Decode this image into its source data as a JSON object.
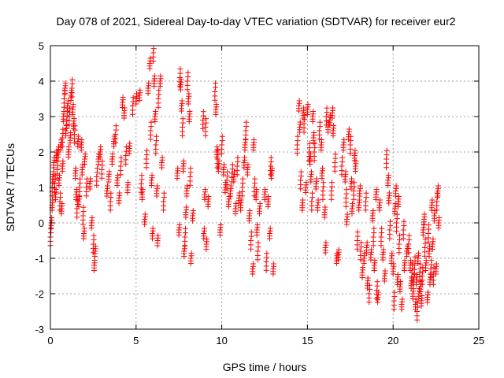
{
  "chart_data": {
    "type": "scatter",
    "title": "Day 078 of 2021, Sidereal Day-to-day VTEC variation (SDTVAR) for receiver eur2",
    "xlabel": "GPS time / hours",
    "ylabel": "SDTVAR / TECUs",
    "xlim": [
      0,
      25
    ],
    "ylim": [
      -3,
      5
    ],
    "xticks": [
      "0",
      "5",
      "10",
      "15",
      "20",
      "25"
    ],
    "yticks": [
      "-3",
      "-2",
      "-1",
      "0",
      "1",
      "2",
      "3",
      "4",
      "5"
    ],
    "grid": true,
    "marker": "plus",
    "marker_color": "#ff0000",
    "series": [
      {
        "name": "SDTVAR",
        "points": [
          [
            0.0,
            -0.4
          ],
          [
            0.05,
            0.0
          ],
          [
            0.1,
            0.5
          ],
          [
            0.1,
            1.0
          ],
          [
            0.15,
            1.3
          ],
          [
            0.2,
            1.7
          ],
          [
            0.25,
            1.1
          ],
          [
            0.3,
            0.8
          ],
          [
            0.35,
            1.9
          ],
          [
            0.4,
            1.5
          ],
          [
            0.45,
            2.0
          ],
          [
            0.5,
            1.2
          ],
          [
            0.55,
            0.6
          ],
          [
            0.6,
            2.2
          ],
          [
            0.65,
            0.4
          ],
          [
            0.7,
            2.4
          ],
          [
            0.7,
            1.6
          ],
          [
            0.75,
            3.0
          ],
          [
            0.8,
            3.5
          ],
          [
            0.85,
            3.8
          ],
          [
            0.9,
            2.6
          ],
          [
            0.95,
            2.9
          ],
          [
            1.0,
            3.3
          ],
          [
            1.05,
            2.0
          ],
          [
            1.1,
            3.0
          ],
          [
            1.15,
            2.4
          ],
          [
            1.2,
            3.6
          ],
          [
            1.25,
            3.8
          ],
          [
            1.3,
            3.2
          ],
          [
            1.35,
            2.8
          ],
          [
            1.4,
            2.5
          ],
          [
            1.45,
            1.4
          ],
          [
            1.5,
            0.8
          ],
          [
            1.55,
            0.4
          ],
          [
            1.6,
            2.3
          ],
          [
            1.65,
            0.6
          ],
          [
            1.7,
            1.0
          ],
          [
            1.8,
            2.2
          ],
          [
            1.85,
            1.5
          ],
          [
            1.9,
            0.2
          ],
          [
            1.95,
            -0.3
          ],
          [
            2.0,
            1.8
          ],
          [
            2.1,
            1.0
          ],
          [
            2.3,
            1.1
          ],
          [
            2.4,
            0.0
          ],
          [
            2.5,
            -0.6
          ],
          [
            2.55,
            -1.2
          ],
          [
            2.6,
            -0.8
          ],
          [
            2.7,
            1.3
          ],
          [
            2.8,
            1.8
          ],
          [
            2.9,
            2.0
          ],
          [
            3.0,
            1.5
          ],
          [
            3.3,
            0.9
          ],
          [
            3.4,
            1.3
          ],
          [
            3.5,
            0.6
          ],
          [
            3.6,
            1.8
          ],
          [
            3.7,
            2.3
          ],
          [
            3.8,
            2.5
          ],
          [
            3.9,
            1.2
          ],
          [
            4.0,
            0.7
          ],
          [
            4.1,
            1.6
          ],
          [
            4.2,
            3.4
          ],
          [
            4.3,
            3.1
          ],
          [
            4.4,
            1.9
          ],
          [
            4.5,
            1.0
          ],
          [
            4.6,
            2.1
          ],
          [
            4.8,
            3.3
          ],
          [
            5.0,
            3.5
          ],
          [
            5.2,
            3.6
          ],
          [
            5.3,
            1.1
          ],
          [
            5.35,
            0.8
          ],
          [
            5.5,
            0.1
          ],
          [
            5.6,
            1.8
          ],
          [
            5.7,
            3.8
          ],
          [
            5.8,
            4.5
          ],
          [
            5.85,
            2.6
          ],
          [
            5.9,
            1.2
          ],
          [
            5.95,
            -0.3
          ],
          [
            6.0,
            4.8
          ],
          [
            6.05,
            4.0
          ],
          [
            6.1,
            3.0
          ],
          [
            6.15,
            2.2
          ],
          [
            6.2,
            0.9
          ],
          [
            6.25,
            -0.5
          ],
          [
            6.3,
            3.5
          ],
          [
            6.4,
            4.0
          ],
          [
            6.5,
            1.7
          ],
          [
            6.6,
            0.6
          ],
          [
            7.4,
            1.4
          ],
          [
            7.5,
            -0.2
          ],
          [
            7.55,
            4.1
          ],
          [
            7.6,
            3.9
          ],
          [
            7.65,
            3.3
          ],
          [
            7.7,
            2.7
          ],
          [
            7.75,
            1.6
          ],
          [
            7.8,
            -0.8
          ],
          [
            7.85,
            -0.4
          ],
          [
            7.9,
            0.3
          ],
          [
            7.95,
            0.9
          ],
          [
            8.0,
            4.0
          ],
          [
            8.05,
            3.5
          ],
          [
            8.1,
            3.0
          ],
          [
            8.15,
            1.3
          ],
          [
            8.2,
            -1.0
          ],
          [
            8.3,
            0.2
          ],
          [
            8.9,
            2.9
          ],
          [
            8.95,
            -0.3
          ],
          [
            9.0,
            0.8
          ],
          [
            9.05,
            2.7
          ],
          [
            9.1,
            -0.6
          ],
          [
            9.2,
            0.6
          ],
          [
            9.6,
            3.7
          ],
          [
            9.65,
            3.2
          ],
          [
            9.7,
            2.0
          ],
          [
            9.75,
            1.8
          ],
          [
            9.8,
            1.6
          ],
          [
            9.9,
            -0.2
          ],
          [
            10.0,
            2.2
          ],
          [
            10.1,
            1.5
          ],
          [
            10.2,
            1.0
          ],
          [
            10.3,
            1.2
          ],
          [
            10.4,
            0.6
          ],
          [
            10.5,
            0.9
          ],
          [
            10.6,
            1.4
          ],
          [
            10.7,
            1.3
          ],
          [
            10.8,
            0.4
          ],
          [
            10.9,
            1.6
          ],
          [
            11.0,
            0.7
          ],
          [
            11.1,
            0.5
          ],
          [
            11.2,
            1.0
          ],
          [
            11.3,
            1.7
          ],
          [
            11.35,
            2.2
          ],
          [
            11.4,
            2.6
          ],
          [
            11.5,
            1.5
          ],
          [
            11.6,
            0.2
          ],
          [
            11.7,
            -0.5
          ],
          [
            11.8,
            -1.3
          ],
          [
            11.85,
            2.2
          ],
          [
            11.9,
            1.0
          ],
          [
            12.0,
            0.8
          ],
          [
            12.05,
            -0.2
          ],
          [
            12.1,
            -0.8
          ],
          [
            12.2,
            0.4
          ],
          [
            12.5,
            0.8
          ],
          [
            12.6,
            -1.1
          ],
          [
            12.7,
            0.6
          ],
          [
            12.8,
            -0.3
          ],
          [
            12.85,
            1.6
          ],
          [
            12.9,
            1.4
          ],
          [
            13.0,
            -1.3
          ],
          [
            14.4,
            2.2
          ],
          [
            14.5,
            3.3
          ],
          [
            14.55,
            2.7
          ],
          [
            14.6,
            1.2
          ],
          [
            14.7,
            0.5
          ],
          [
            14.75,
            3.1
          ],
          [
            14.8,
            2.8
          ],
          [
            14.9,
            1.0
          ],
          [
            15.0,
            3.2
          ],
          [
            15.1,
            2.0
          ],
          [
            15.15,
            1.8
          ],
          [
            15.2,
            1.3
          ],
          [
            15.25,
            0.6
          ],
          [
            15.3,
            3.0
          ],
          [
            15.35,
            2.4
          ],
          [
            15.4,
            2.0
          ],
          [
            15.5,
            1.1
          ],
          [
            15.6,
            0.5
          ],
          [
            15.7,
            2.6
          ],
          [
            15.8,
            2.2
          ],
          [
            15.85,
            1.4
          ],
          [
            15.9,
            0.9
          ],
          [
            16.0,
            0.3
          ],
          [
            16.05,
            -0.7
          ],
          [
            16.1,
            3.0
          ],
          [
            16.2,
            2.7
          ],
          [
            16.3,
            2.9
          ],
          [
            16.4,
            0.9
          ],
          [
            16.45,
            3.1
          ],
          [
            16.5,
            2.6
          ],
          [
            16.6,
            1.7
          ],
          [
            16.7,
            -1.0
          ],
          [
            16.8,
            -0.9
          ],
          [
            17.0,
            1.6
          ],
          [
            17.1,
            2.2
          ],
          [
            17.2,
            1.3
          ],
          [
            17.25,
            0.7
          ],
          [
            17.3,
            0.1
          ],
          [
            17.4,
            2.5
          ],
          [
            17.5,
            2.2
          ],
          [
            17.55,
            1.1
          ],
          [
            17.6,
            0.4
          ],
          [
            17.7,
            0.9
          ],
          [
            17.75,
            1.9
          ],
          [
            17.8,
            1.6
          ],
          [
            17.9,
            -0.5
          ],
          [
            18.0,
            0.5
          ],
          [
            18.05,
            0.9
          ],
          [
            18.1,
            -0.8
          ],
          [
            18.2,
            -1.4
          ],
          [
            18.3,
            -1.0
          ],
          [
            18.4,
            0.6
          ],
          [
            18.45,
            -0.7
          ],
          [
            18.5,
            -1.7
          ],
          [
            18.6,
            -2.0
          ],
          [
            18.7,
            -0.9
          ],
          [
            18.8,
            0.2
          ],
          [
            18.85,
            -0.4
          ],
          [
            18.9,
            -1.2
          ],
          [
            19.0,
            0.8
          ],
          [
            19.05,
            -1.9
          ],
          [
            19.1,
            -2.1
          ],
          [
            19.2,
            0.5
          ],
          [
            19.3,
            -0.4
          ],
          [
            19.4,
            -0.9
          ],
          [
            19.5,
            -1.5
          ],
          [
            19.6,
            1.8
          ],
          [
            19.7,
            1.2
          ],
          [
            19.75,
            0.7
          ],
          [
            19.8,
            -0.2
          ],
          [
            19.9,
            -1.0
          ],
          [
            20.0,
            -1.3
          ],
          [
            20.05,
            -2.2
          ],
          [
            20.1,
            0.4
          ],
          [
            20.15,
            0.9
          ],
          [
            20.2,
            0.0
          ],
          [
            20.25,
            -1.6
          ],
          [
            20.3,
            0.6
          ],
          [
            20.35,
            -0.6
          ],
          [
            20.4,
            -1.8
          ],
          [
            20.5,
            -2.3
          ],
          [
            20.6,
            -0.2
          ],
          [
            20.65,
            -1.2
          ],
          [
            20.8,
            -0.8
          ],
          [
            20.9,
            -0.6
          ],
          [
            21.0,
            -1.2
          ],
          [
            21.05,
            -1.7
          ],
          [
            21.1,
            -1.4
          ],
          [
            21.15,
            -2.0
          ],
          [
            21.2,
            -1.6
          ],
          [
            21.25,
            -1.2
          ],
          [
            21.3,
            -2.3
          ],
          [
            21.35,
            -1.6
          ],
          [
            21.4,
            -2.5
          ],
          [
            21.45,
            -1.0
          ],
          [
            21.5,
            -2.0
          ],
          [
            21.55,
            -1.4
          ],
          [
            21.6,
            -1.8
          ],
          [
            21.65,
            -2.2
          ],
          [
            21.7,
            -1.5
          ],
          [
            21.75,
            -0.2
          ],
          [
            21.8,
            0.1
          ],
          [
            21.85,
            -0.7
          ],
          [
            21.9,
            -1.2
          ],
          [
            22.0,
            -2.1
          ],
          [
            22.05,
            -0.3
          ],
          [
            22.1,
            -0.8
          ],
          [
            22.15,
            -1.6
          ],
          [
            22.2,
            -1.3
          ],
          [
            22.25,
            0.5
          ],
          [
            22.3,
            -0.6
          ],
          [
            22.35,
            -1.5
          ],
          [
            22.4,
            0.2
          ],
          [
            22.5,
            -1.3
          ],
          [
            22.55,
            0.6
          ],
          [
            22.6,
            0.9
          ],
          [
            22.65,
            0.0
          ]
        ]
      }
    ]
  }
}
